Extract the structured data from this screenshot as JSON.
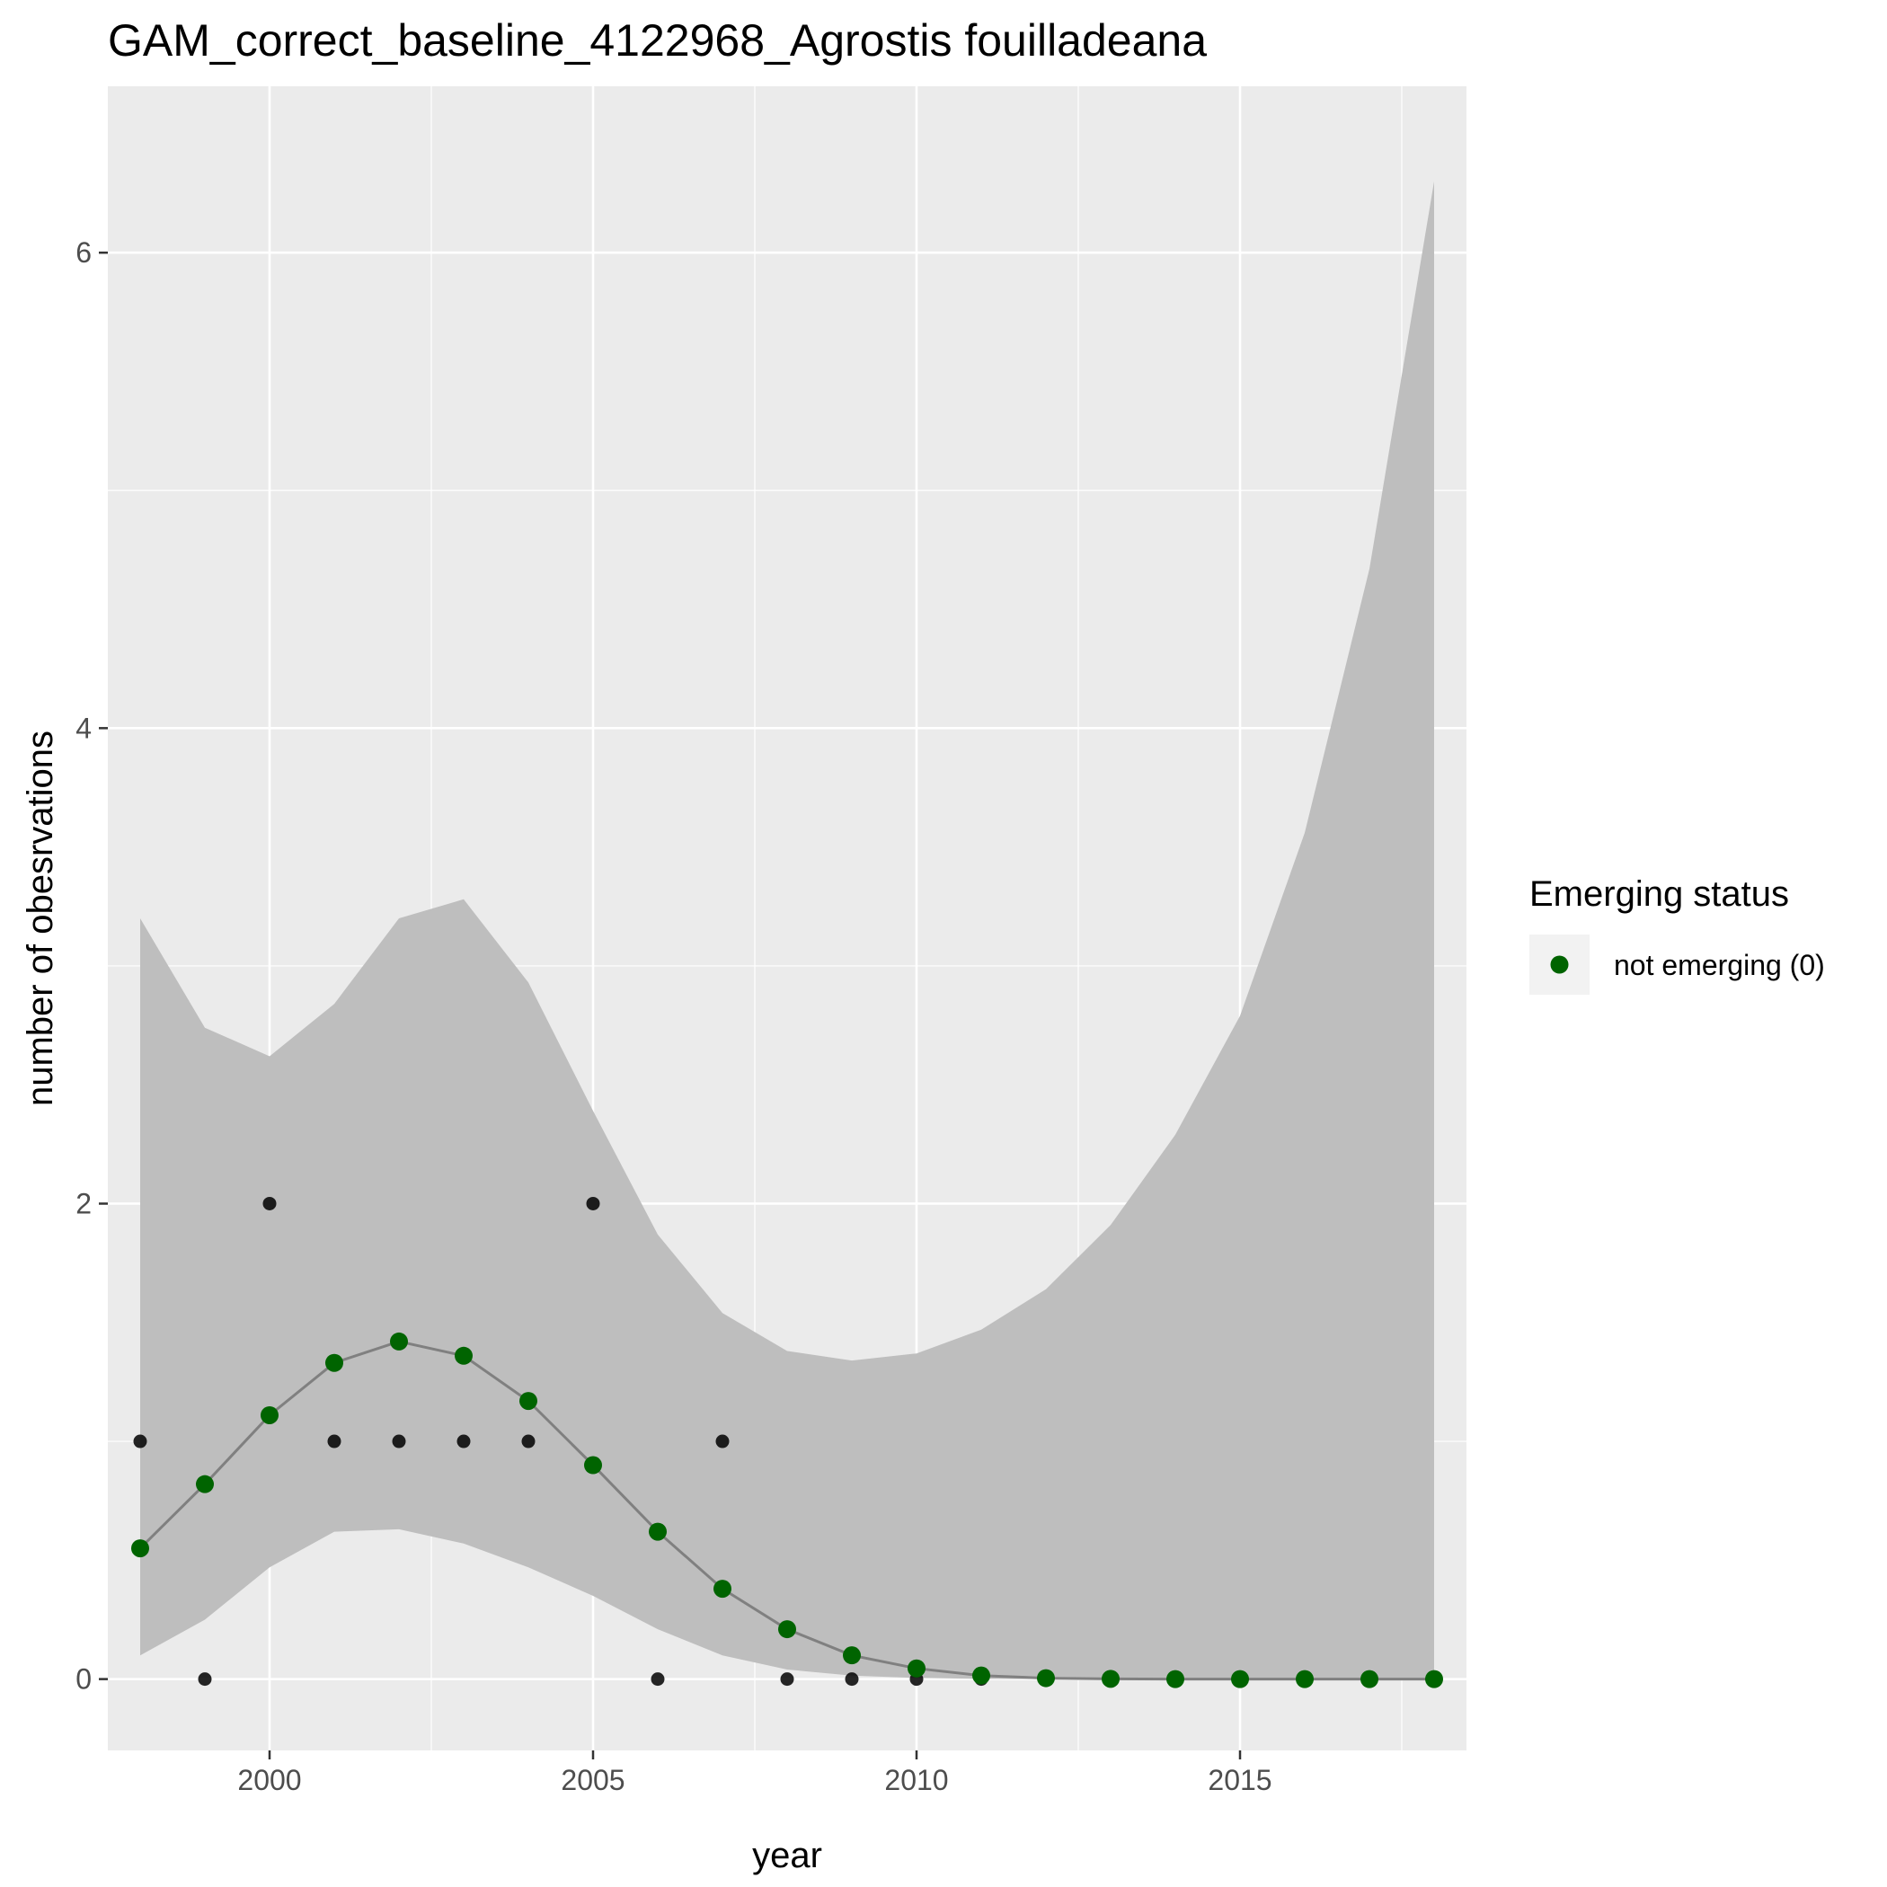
{
  "chart_data": {
    "type": "scatter",
    "title": "GAM_correct_baseline_4122968_Agrostis fouilladeana",
    "xlabel": "year",
    "ylabel": "number of obesrvations",
    "xlim": [
      1997.5,
      2018.5
    ],
    "ylim": [
      -0.3,
      6.7
    ],
    "x_ticks": [
      2000,
      2005,
      2010,
      2015
    ],
    "y_ticks": [
      0,
      2,
      4,
      6
    ],
    "grid": true,
    "legend": {
      "title": "Emerging status",
      "position": "right",
      "entries": [
        {
          "label": "not emerging (0)",
          "color": "#006400"
        }
      ]
    },
    "observed": {
      "color": "#000000",
      "points": [
        {
          "x": 1998,
          "y": 1
        },
        {
          "x": 1999,
          "y": 0
        },
        {
          "x": 2000,
          "y": 2
        },
        {
          "x": 2001,
          "y": 1
        },
        {
          "x": 2002,
          "y": 1
        },
        {
          "x": 2003,
          "y": 1
        },
        {
          "x": 2004,
          "y": 1
        },
        {
          "x": 2005,
          "y": 2
        },
        {
          "x": 2006,
          "y": 0
        },
        {
          "x": 2007,
          "y": 1
        },
        {
          "x": 2008,
          "y": 0
        },
        {
          "x": 2009,
          "y": 0
        },
        {
          "x": 2010,
          "y": 0
        },
        {
          "x": 2011,
          "y": 0
        }
      ]
    },
    "series": [
      {
        "name": "not emerging (0)",
        "color": "#006400",
        "line_color": "#808080",
        "x": [
          1998,
          1999,
          2000,
          2001,
          2002,
          2003,
          2004,
          2005,
          2006,
          2007,
          2008,
          2009,
          2010,
          2011,
          2012,
          2013,
          2014,
          2015,
          2016,
          2017,
          2018
        ],
        "y": [
          0.55,
          0.82,
          1.11,
          1.33,
          1.42,
          1.36,
          1.17,
          0.9,
          0.62,
          0.38,
          0.21,
          0.1,
          0.045,
          0.015,
          0.004,
          0.001,
          0.0,
          0.0,
          0.0,
          0.0,
          0.0
        ],
        "ci_lower": [
          0.1,
          0.25,
          0.47,
          0.62,
          0.63,
          0.57,
          0.47,
          0.35,
          0.21,
          0.1,
          0.04,
          0.015,
          0.005,
          0.001,
          0.0,
          0.0,
          0.0,
          0.0,
          0.0,
          0.0,
          0.0
        ],
        "ci_upper": [
          3.2,
          2.74,
          2.62,
          2.84,
          3.2,
          3.28,
          2.93,
          2.39,
          1.87,
          1.54,
          1.38,
          1.34,
          1.37,
          1.47,
          1.64,
          1.91,
          2.29,
          2.79,
          3.56,
          4.67,
          6.3
        ]
      }
    ],
    "ci_color": "#bebebe",
    "panel_color": "#ebebeb"
  }
}
